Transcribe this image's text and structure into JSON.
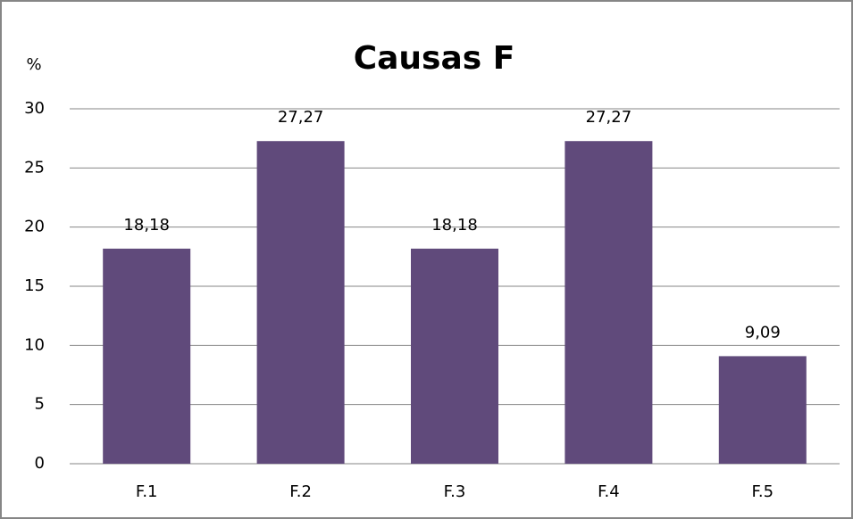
{
  "chart_data": {
    "type": "bar",
    "title": "Causas F",
    "y_label": "%",
    "categories": [
      "F.1",
      "F.2",
      "F.3",
      "F.4",
      "F.5"
    ],
    "values": [
      18.18,
      27.27,
      18.18,
      27.27,
      9.09
    ],
    "value_labels": [
      "18,18",
      "27,27",
      "18,18",
      "27,27",
      "9,09"
    ],
    "color": "#604a7b",
    "ylim": [
      0,
      30
    ],
    "yticks": [
      0,
      5,
      10,
      15,
      20,
      25,
      30
    ],
    "grid": true
  }
}
